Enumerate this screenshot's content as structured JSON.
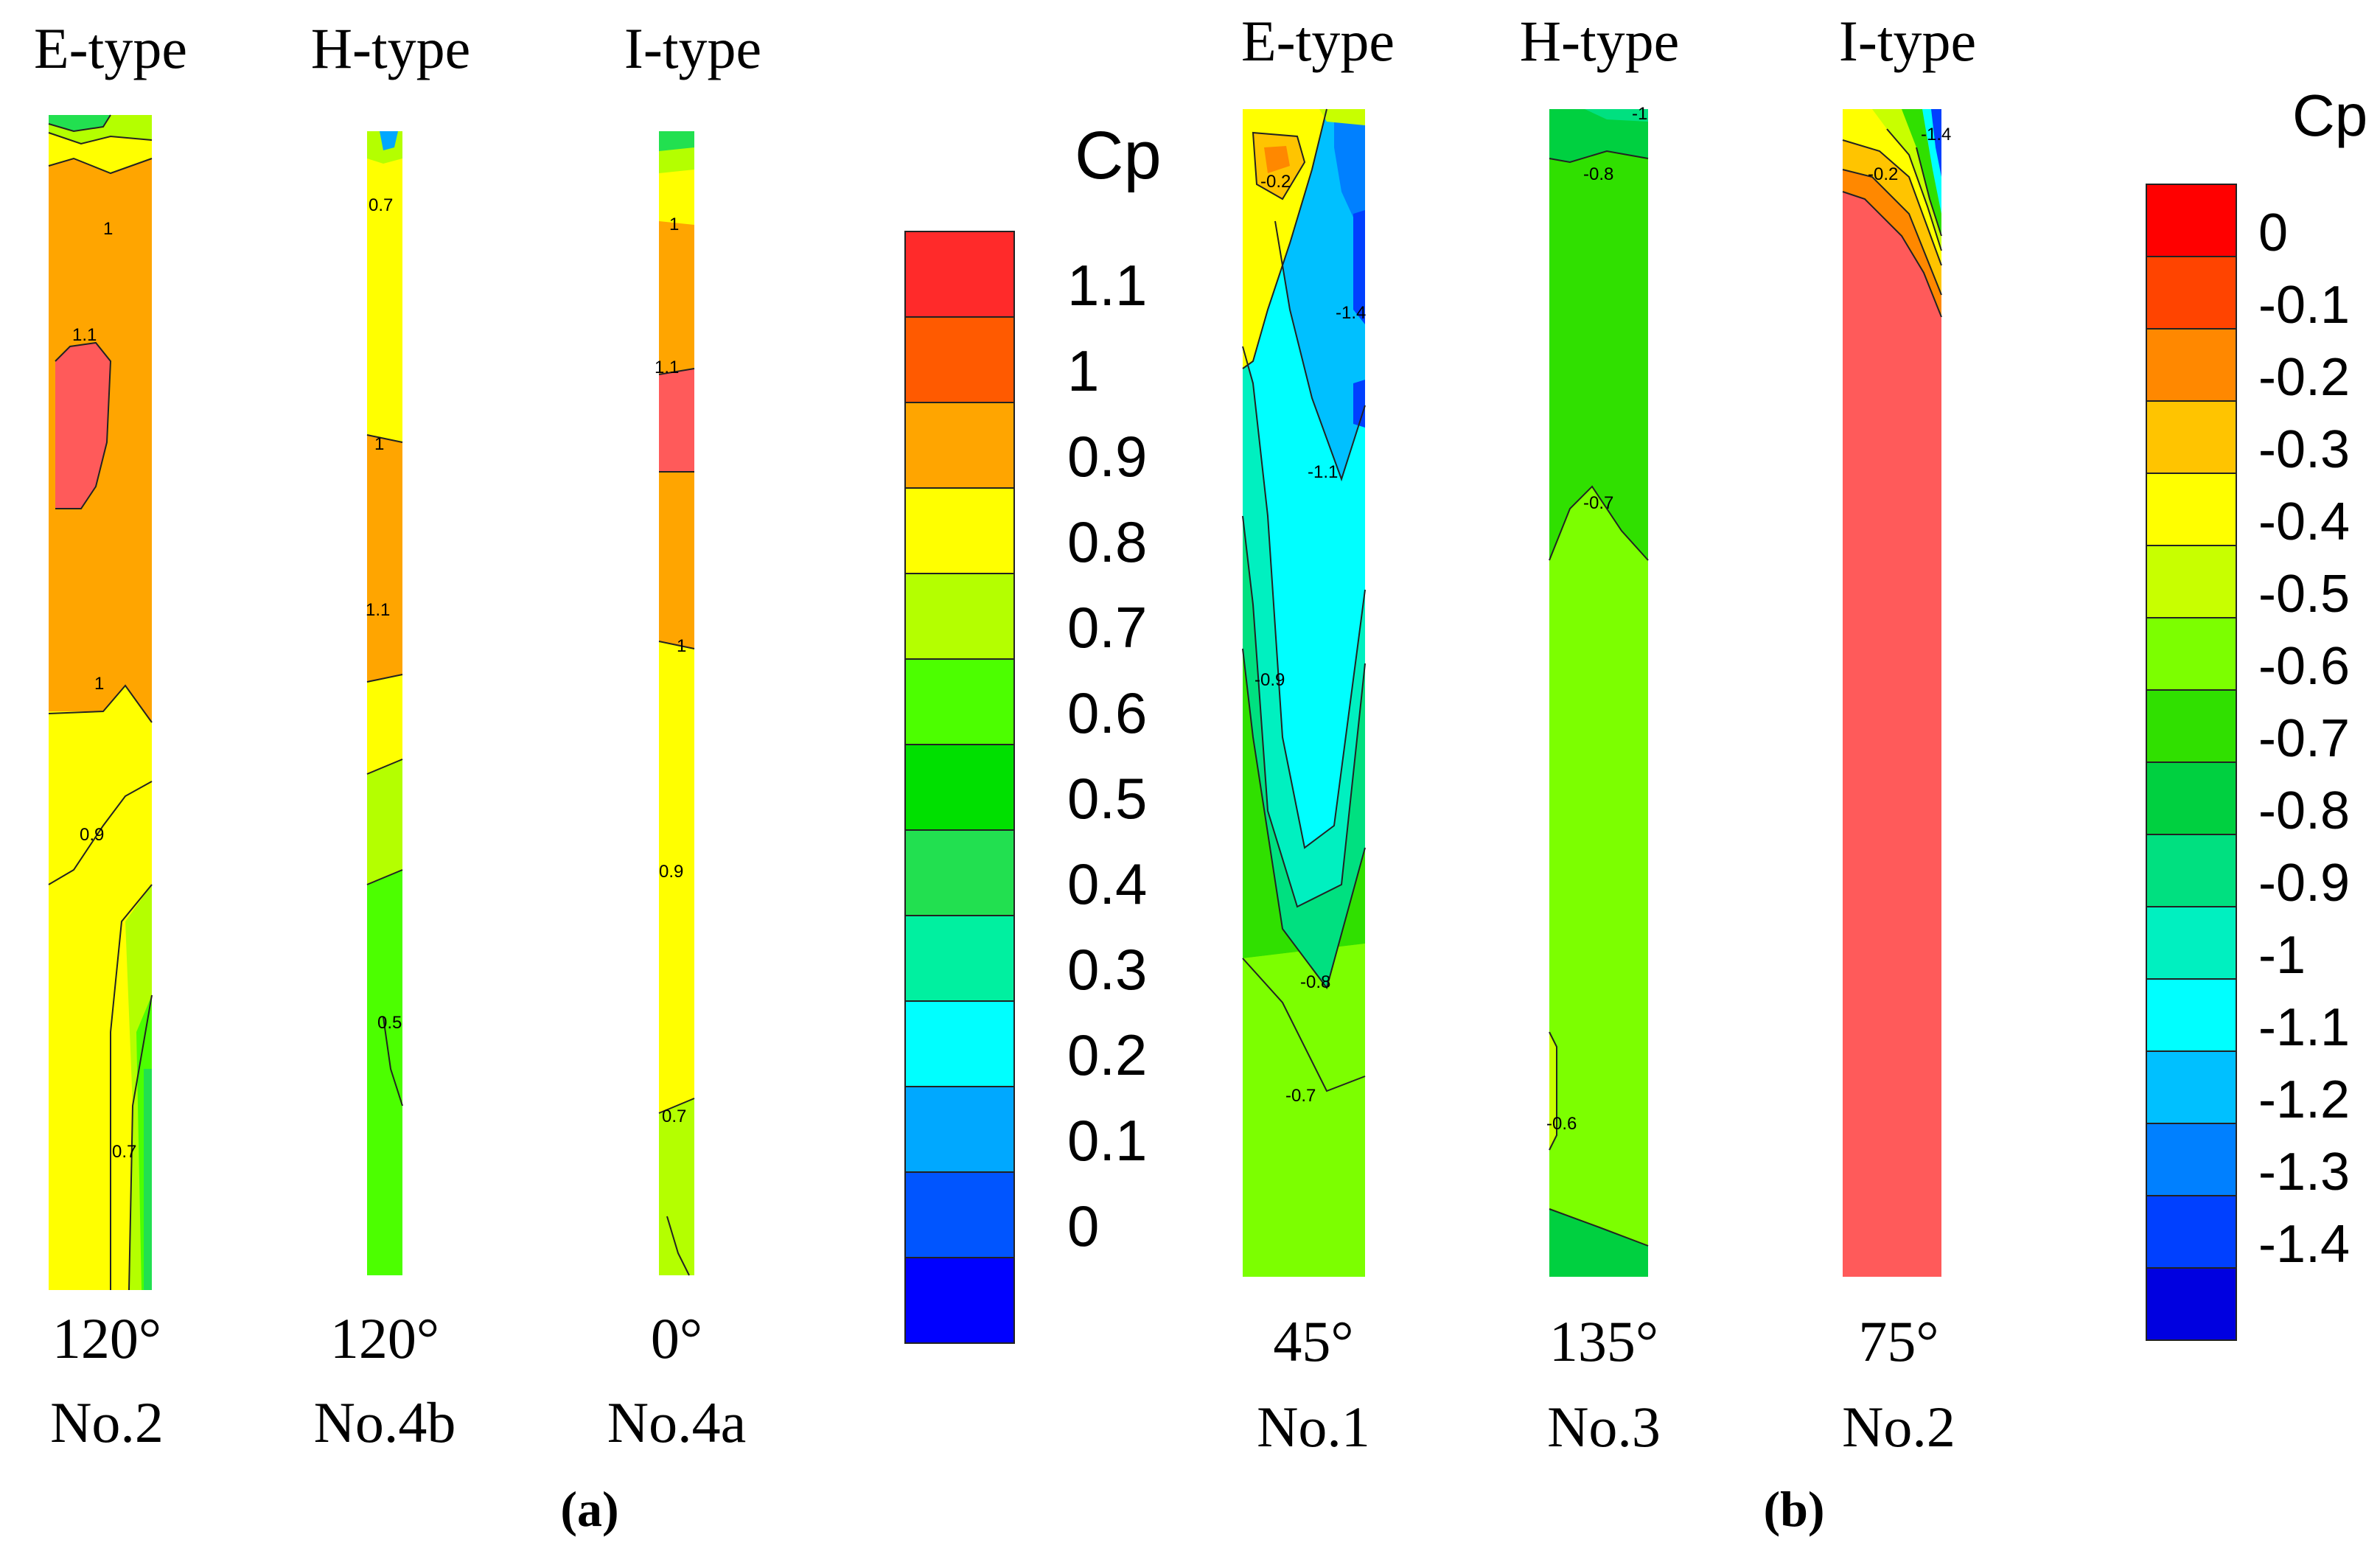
{
  "panel_a": {
    "label": "(a)",
    "legend": {
      "title": "Cp",
      "ticks": [
        "1.1",
        "1",
        "0.9",
        "0.8",
        "0.7",
        "0.6",
        "0.5",
        "0.4",
        "0.3",
        "0.2",
        "0.1",
        "0"
      ],
      "colors": [
        "#ff2a2a",
        "#ff5a00",
        "#ffa500",
        "#ffff00",
        "#b4ff00",
        "#4cff00",
        "#00e000",
        "#22e050",
        "#00f0a0",
        "#00ffff",
        "#00a8ff",
        "#0055ff",
        "#0000ff"
      ]
    },
    "strips": [
      {
        "type": "E-type",
        "angle": "120°",
        "number": "No.2",
        "contours": [
          "1",
          "1.1",
          "1",
          "0.9",
          "0.7"
        ]
      },
      {
        "type": "H-type",
        "angle": "120°",
        "number": "No.4b",
        "contours": [
          "0.7",
          "1",
          "1.1",
          "0.5"
        ]
      },
      {
        "type": "I-type",
        "angle": "0°",
        "number": "No.4a",
        "contours": [
          "1",
          "1.1",
          "1",
          "0.9",
          "0.7"
        ]
      }
    ]
  },
  "panel_b": {
    "label": "(b)",
    "legend": {
      "title": "Cp",
      "ticks": [
        "0",
        "-0.1",
        "-0.2",
        "-0.3",
        "-0.4",
        "-0.5",
        "-0.6",
        "-0.7",
        "-0.8",
        "-0.9",
        "-1",
        "-1.1",
        "-1.2",
        "-1.3",
        "-1.4"
      ],
      "colors": [
        "#ff0000",
        "#ff4400",
        "#ff8800",
        "#ffc400",
        "#ffff00",
        "#c8ff00",
        "#7cff00",
        "#30e000",
        "#00d040",
        "#00e080",
        "#00f0c0",
        "#00ffff",
        "#00c0ff",
        "#0080ff",
        "#0040ff",
        "#0000e0"
      ]
    },
    "strips": [
      {
        "type": "E-type",
        "angle": "45°",
        "number": "No.1",
        "contours": [
          "-0.2",
          "-1.4",
          "-1.1",
          "-0.9",
          "-0.8",
          "-0.7"
        ]
      },
      {
        "type": "H-type",
        "angle": "135°",
        "number": "No.3",
        "contours": [
          "-1",
          "-0.8",
          "-0.7",
          "-0.6"
        ]
      },
      {
        "type": "I-type",
        "angle": "75°",
        "number": "No.2",
        "contours": [
          "-0.2",
          "-1.4"
        ]
      }
    ]
  }
}
